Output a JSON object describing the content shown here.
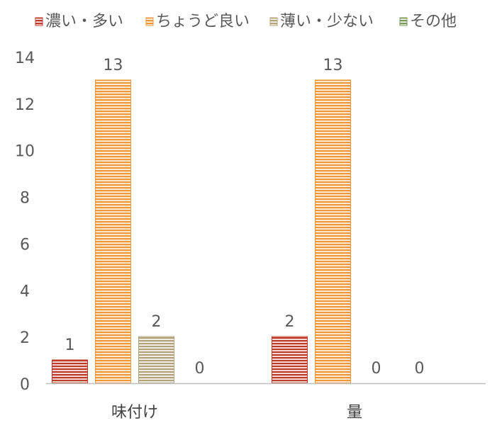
{
  "chart_data": {
    "type": "bar",
    "title": "",
    "xlabel": "",
    "ylabel": "",
    "categories": [
      "味付け",
      "量"
    ],
    "series": [
      {
        "name": "濃い・多い",
        "values": [
          1,
          2
        ],
        "color": "#c0392b"
      },
      {
        "name": "ちょうど良い",
        "values": [
          13,
          13
        ],
        "color": "#f0973a"
      },
      {
        "name": "薄い・少ない",
        "values": [
          2,
          0
        ],
        "color": "#b3a27a"
      },
      {
        "name": "その他",
        "values": [
          0,
          0
        ],
        "color": "#7a9a5b"
      }
    ],
    "ylim": [
      0,
      14
    ],
    "yticks": [
      0,
      2,
      4,
      6,
      8,
      10,
      12,
      14
    ],
    "grid": false,
    "legend_position": "top",
    "data_labels": true,
    "bar_pattern": "horizontal-stripes"
  }
}
